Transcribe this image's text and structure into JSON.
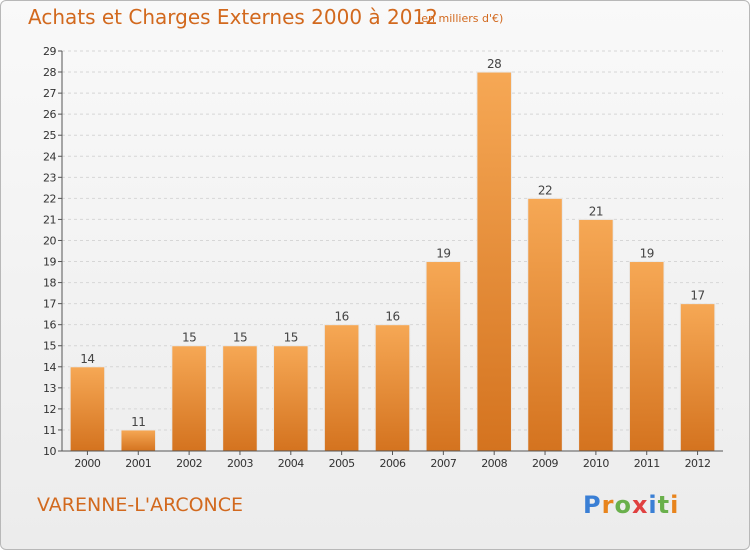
{
  "header": {
    "title": "Achats et Charges Externes 2000 à 2012",
    "subtitle": "(en milliers d'€)"
  },
  "footer": {
    "commune": "VARENNE-L'ARCONCE",
    "logo": "Proxiti"
  },
  "colors": {
    "bar_light": "#f6a855",
    "bar_dark": "#d4731f",
    "text_accent": "#d2691e",
    "logo_letters": [
      "#3a7fd5",
      "#e8841c",
      "#6ab04c",
      "#e04040",
      "#3a7fd5",
      "#6ab04c",
      "#e8841c"
    ]
  },
  "chart_data": {
    "type": "bar",
    "categories": [
      "2000",
      "2001",
      "2002",
      "2003",
      "2004",
      "2005",
      "2006",
      "2007",
      "2008",
      "2009",
      "2010",
      "2011",
      "2012"
    ],
    "values": [
      14,
      11,
      15,
      15,
      15,
      16,
      16,
      19,
      28,
      22,
      21,
      19,
      17
    ],
    "title": "Achats et Charges Externes 2000 à 2012",
    "ylim": [
      10,
      29
    ],
    "yticks": [
      10,
      11,
      12,
      13,
      14,
      15,
      16,
      17,
      18,
      19,
      20,
      21,
      22,
      23,
      24,
      25,
      26,
      27,
      28,
      29
    ],
    "grid": "horizontal-dashed",
    "data_labels": true
  }
}
